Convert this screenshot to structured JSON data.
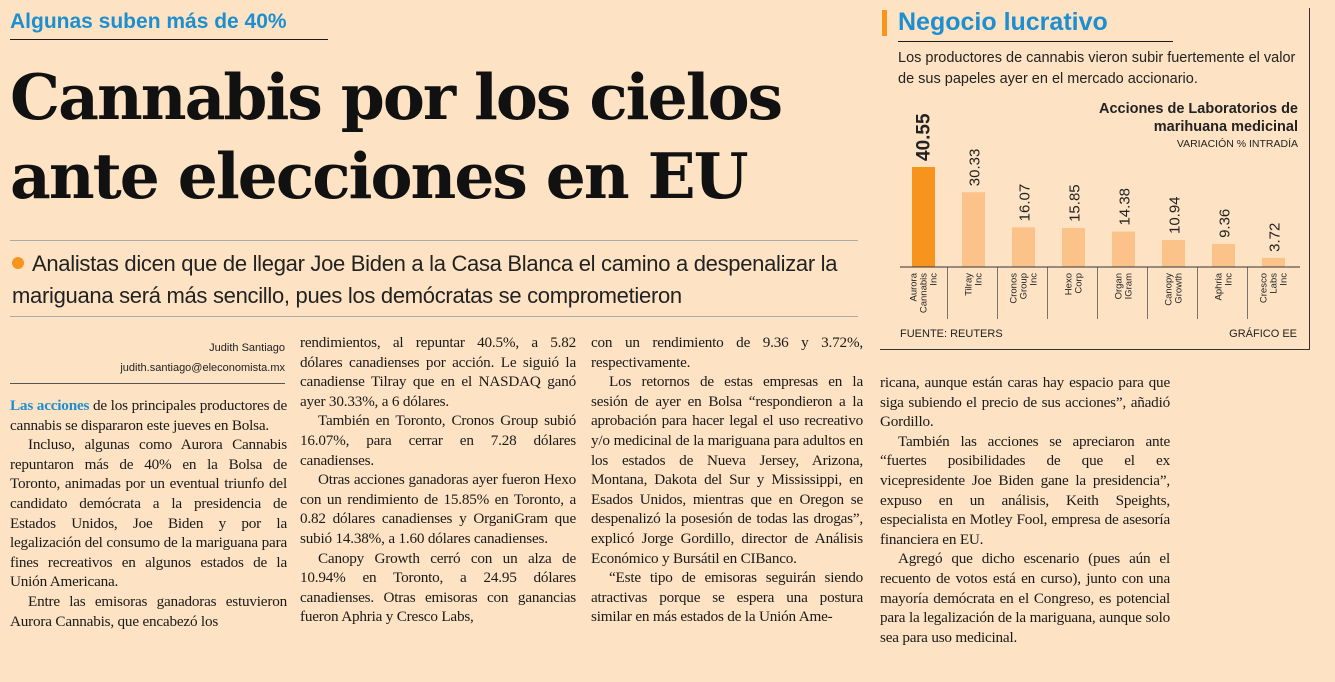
{
  "kicker": "Algunas suben más de 40%",
  "headline": [
    "Cannabis por los cielos",
    "ante elecciones en EU"
  ],
  "subhead": "Analistas dicen que de llegar Joe Biden a la Casa Blanca el camino a despenalizar la mariguana será más sencillo, pues los demócratas se comprometieron",
  "byline": {
    "author": "Judith Santiago",
    "email": "judith.santiago@eleconomista.mx"
  },
  "body": {
    "col1": {
      "lead": "Las acciones",
      "p1": " de los principales productores de cannabis se dispararon este jueves en Bolsa.",
      "p2": "Incluso, algunas como Aurora Cannabis repuntaron más de 40% en la Bolsa de Toronto, animadas por un eventual triunfo del candidato demócrata a la presidencia de Estados Unidos, Joe Biden y por la legalización del consumo de la mariguana para fines recreativos en algunos estados de la Unión Americana.",
      "p3": "Entre las emisoras ganadoras estuvieron Aurora Cannabis, que encabezó los"
    },
    "col2": {
      "p1": "rendimientos, al repuntar 40.5%, a 5.82 dólares canadienses por acción. Le siguió la canadiense Tilray que en el NASDAQ ganó ayer 30.33%, a 6 dólares.",
      "p2": "También en Toronto, Cronos Group subió 16.07%, para cerrar en 7.28 dólares canadienses.",
      "p3": "Otras acciones ganadoras ayer fueron Hexo con un rendimiento de 15.85% en Toronto, a 0.82 dólares canadienses y OrganiGram que subió 14.38%, a 1.60 dólares canadienses.",
      "p4": "Canopy Growth cerró con un alza de 10.94% en Toronto, a 24.95 dólares canadienses. Otras emisoras con ganancias fueron Aphria y Cresco Labs,"
    },
    "col3": {
      "p1": "con un rendimiento de 9.36 y 3.72%, respectivamente.",
      "p2": "Los retornos de estas empresas en la sesión de ayer en Bolsa “respondieron a la aprobación para hacer legal el uso recreativo y/o medicinal de la mariguana para adultos en los estados de Nueva Jersey, Arizona, Montana, Dakota del Sur y Mississippi, en Esados Unidos, mientras que en Oregon se despenalizó la posesión de todas las drogas”, explicó Jorge Gordillo, director de Análisis Económico y Bursátil en CIBanco.",
      "p3": "“Este tipo de emisoras seguirán siendo atractivas porque se espera una postura similar en más estados de la Unión Ame-"
    },
    "col4": {
      "p1": "ricana, aunque están caras hay espacio para que siga subiendo el precio de sus acciones”, añadió Gordillo.",
      "p2": "También las acciones se apreciaron ante “fuertes posibilidades de que el ex vicepresidente Joe Biden gane la presidencia”, expuso en un análisis, Keith Speights, especialista en Motley Fool, empresa de asesoría financiera en EU.",
      "p3": "Agregó que dicho escenario (pues aún el recuento de votos está en curso), junto con una mayoría demócrata en el Congreso, es potencial para la legalización de la mariguana, aunque solo sea para uso medicinal."
    }
  },
  "panel": {
    "title": "Negocio lucrativo",
    "description": "Los productores de cannabis vieron subir fuertemente el valor de sus papeles ayer en el mercado accionario.",
    "source": "FUENTE: REUTERS",
    "credit": "GRÁFICO EE"
  },
  "chart_data": {
    "type": "bar",
    "title": "Acciones de Laboratorios de marihuana medicinal",
    "subtitle": "VARIACIÓN % INTRADÍA",
    "categories": [
      "Aurora Cannabis Inc",
      "Tilray Inc",
      "Cronos Group Inc",
      "Hexo Corp",
      "Organ IGram",
      "Canopy Growth",
      "Aphria Inc",
      "Cresco Labs Inc"
    ],
    "values": [
      40.55,
      30.33,
      16.07,
      15.85,
      14.38,
      10.94,
      9.36,
      3.72
    ],
    "value_labels": [
      "40.55",
      "30.33",
      "16.07",
      "15.85",
      "14.38",
      "10.94",
      "9.36",
      "3.72"
    ],
    "highlight_color": "#f7941d",
    "bar_color": "#fbc38a",
    "ylim": [
      0,
      40.55
    ]
  }
}
